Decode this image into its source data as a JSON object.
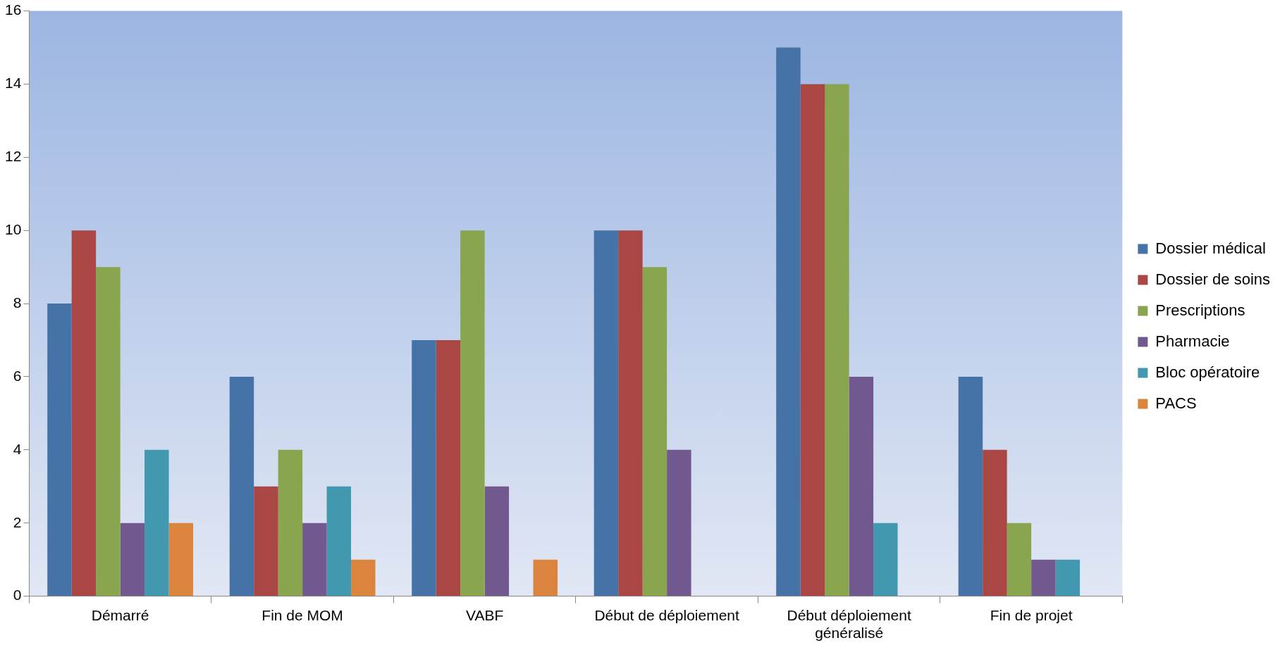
{
  "chart_data": {
    "type": "bar",
    "categories": [
      "Démarré",
      "Fin de MOM",
      "VABF",
      "Début de déploiement",
      "Début déploiement généralisé",
      "Fin de projet"
    ],
    "series": [
      {
        "name": "Dossier médical",
        "color": "#4572a7",
        "values": [
          8,
          6,
          7,
          10,
          15,
          6
        ]
      },
      {
        "name": "Dossier de soins",
        "color": "#aa4643",
        "values": [
          10,
          3,
          7,
          10,
          14,
          4
        ]
      },
      {
        "name": "Prescriptions",
        "color": "#89a54e",
        "values": [
          9,
          4,
          10,
          9,
          14,
          2
        ]
      },
      {
        "name": "Pharmacie",
        "color": "#71588f",
        "values": [
          2,
          2,
          3,
          4,
          6,
          1
        ]
      },
      {
        "name": "Bloc opératoire",
        "color": "#4198af",
        "values": [
          4,
          3,
          null,
          null,
          2,
          1
        ]
      },
      {
        "name": "PACS",
        "color": "#db843d",
        "values": [
          2,
          1,
          1,
          null,
          null,
          null
        ]
      }
    ],
    "ylim": [
      0,
      16
    ],
    "yticks": [
      0,
      2,
      4,
      6,
      8,
      10,
      12,
      14,
      16
    ],
    "grid": false,
    "legend": "right"
  }
}
